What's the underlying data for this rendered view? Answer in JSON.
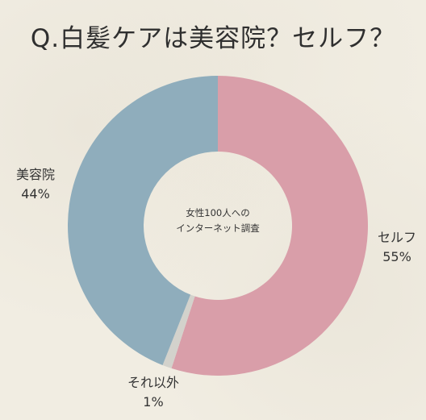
{
  "title": "Q.白髪ケアは美容院？セルフ？",
  "chart_data": {
    "type": "pie",
    "title": "Q.白髪ケアは美容院？セルフ？",
    "center_note": [
      "女性100人への",
      "インターネット調査"
    ],
    "slices": [
      {
        "label": "セルフ",
        "value": 55,
        "value_label": "55%",
        "color": "#d99ea9"
      },
      {
        "label": "それ以外",
        "value": 1,
        "value_label": "1%",
        "color": "#d3d2cc"
      },
      {
        "label": "美容院",
        "value": 44,
        "value_label": "44%",
        "color": "#8fadbc"
      }
    ]
  }
}
